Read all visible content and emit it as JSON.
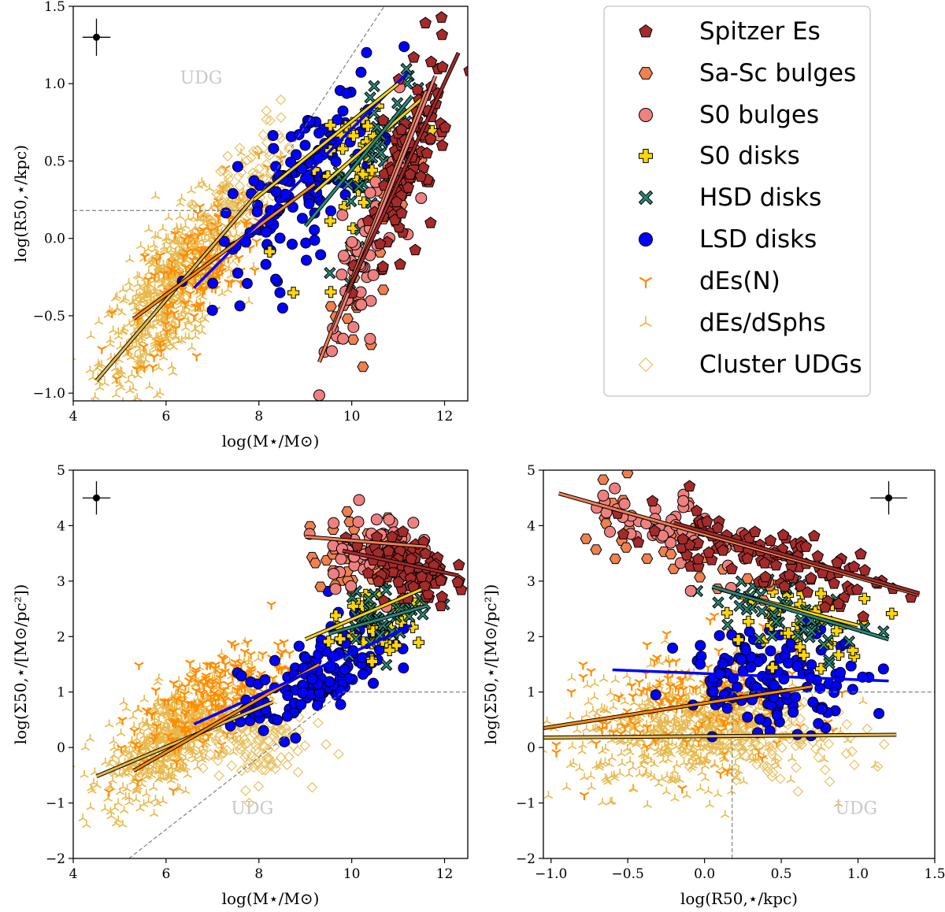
{
  "colors": {
    "spitzer": "#a52a2a",
    "sasc": "#f08050",
    "s0b": "#f08080",
    "s0d": "#ffd700",
    "hsd": "#2a8a7a",
    "lsd": "#0000ff",
    "den": "#ff8c00",
    "dsph": "#e8b84a",
    "udg": "#e8c060"
  },
  "legend": {
    "items": [
      {
        "key": "spitzer",
        "label": "Spitzer Es",
        "marker": "pentagon"
      },
      {
        "key": "sasc",
        "label": "Sa-Sc bulges",
        "marker": "hexagon"
      },
      {
        "key": "s0b",
        "label": "S0 bulges",
        "marker": "circle"
      },
      {
        "key": "s0d",
        "label": "S0 disks",
        "marker": "plus"
      },
      {
        "key": "hsd",
        "label": "HSD disks",
        "marker": "x"
      },
      {
        "key": "lsd",
        "label": "LSD disks",
        "marker": "circle"
      },
      {
        "key": "den",
        "label": "dEs(N)",
        "marker": "tri-down"
      },
      {
        "key": "dsph",
        "label": "dEs/dSphs",
        "marker": "tri-up"
      },
      {
        "key": "udg",
        "label": "Cluster UDGs",
        "marker": "diamond"
      }
    ]
  },
  "chart_data": [
    {
      "id": "p1",
      "type": "scatter",
      "xlabel": "log(M⋆/M⊙)",
      "ylabel": "log(R50,⋆/kpc)",
      "xlim": [
        4,
        12.5
      ],
      "ylim": [
        -1.05,
        1.5
      ],
      "xticks": [
        4,
        6,
        8,
        10,
        12
      ],
      "yticks": [
        -1.0,
        -0.5,
        0.0,
        0.5,
        1.0,
        1.5
      ],
      "ytick_labels": [
        "−1.0",
        "−0.5",
        "0.0",
        "0.5",
        "1.0",
        "1.5"
      ],
      "annotation": "UDG",
      "annotation_at": [
        6.3,
        1.0
      ],
      "error_bar": {
        "x": 4.5,
        "y": 1.3,
        "dx": 0.3,
        "dy": 0.12
      },
      "guides": [
        {
          "x1": 4,
          "y1": 0.18,
          "x2": 7.8,
          "y2": 0.18
        },
        {
          "x1": 7.8,
          "y1": 0.18,
          "x2": 10.7,
          "y2": 1.5
        }
      ],
      "series": [
        {
          "key": "dsph",
          "n": 620,
          "cx": 6.1,
          "cy": -0.35,
          "sx": 0.75,
          "sy": 0.22,
          "slope": 0.3
        },
        {
          "key": "den",
          "n": 180,
          "cx": 6.8,
          "cy": -0.15,
          "sx": 0.75,
          "sy": 0.2,
          "slope": 0.28
        },
        {
          "key": "udg",
          "n": 110,
          "cx": 7.7,
          "cy": 0.3,
          "sx": 0.55,
          "sy": 0.18,
          "slope": 0.3
        },
        {
          "key": "lsd",
          "n": 140,
          "cx": 8.9,
          "cy": 0.35,
          "sx": 0.85,
          "sy": 0.22,
          "slope": 0.28
        },
        {
          "key": "s0d",
          "n": 40,
          "cx": 10.3,
          "cy": 0.5,
          "sx": 0.55,
          "sy": 0.22,
          "slope": 0.3
        },
        {
          "key": "hsd",
          "n": 45,
          "cx": 10.6,
          "cy": 0.55,
          "sx": 0.5,
          "sy": 0.2,
          "slope": 0.4
        },
        {
          "key": "sasc",
          "n": 35,
          "cx": 10.3,
          "cy": -0.2,
          "sx": 0.6,
          "sy": 0.25,
          "slope": 0.6
        },
        {
          "key": "s0b",
          "n": 60,
          "cx": 10.4,
          "cy": -0.05,
          "sx": 0.55,
          "sy": 0.25,
          "slope": 0.6
        },
        {
          "key": "spitzer",
          "n": 110,
          "cx": 11.2,
          "cy": 0.45,
          "sx": 0.45,
          "sy": 0.25,
          "slope": 0.55
        }
      ],
      "fits": [
        {
          "key": "dsph",
          "x1": 4.5,
          "y1": -0.92,
          "x2": 8.0,
          "y2": 0.3
        },
        {
          "key": "den",
          "x1": 5.3,
          "y1": -0.52,
          "x2": 9.2,
          "y2": 0.35
        },
        {
          "key": "lsd",
          "x1": 6.6,
          "y1": -0.32,
          "x2": 11.2,
          "y2": 1.07
        },
        {
          "key": "s0d",
          "x1": 9.2,
          "y1": 0.3,
          "x2": 11.5,
          "y2": 0.9
        },
        {
          "key": "s0d",
          "x1": 7.9,
          "y1": 0.25,
          "x2": 11.0,
          "y2": 1.0
        },
        {
          "key": "hsd",
          "x1": 9.0,
          "y1": 0.08,
          "x2": 11.3,
          "y2": 0.92
        },
        {
          "key": "sasc",
          "x1": 9.3,
          "y1": -0.8,
          "x2": 11.6,
          "y2": 0.95
        },
        {
          "key": "s0b",
          "x1": 9.6,
          "y1": -0.6,
          "x2": 11.8,
          "y2": 1.05
        },
        {
          "key": "spitzer",
          "x1": 9.9,
          "y1": -0.35,
          "x2": 12.3,
          "y2": 1.2
        }
      ]
    },
    {
      "id": "p2",
      "type": "scatter",
      "xlabel": "log(M⋆/M⊙)",
      "ylabel": "log(Σ50,⋆/[M⊙/pc²])",
      "xlim": [
        4,
        12.5
      ],
      "ylim": [
        -2,
        5
      ],
      "xticks": [
        4,
        6,
        8,
        10,
        12
      ],
      "yticks": [
        -2,
        -1,
        0,
        1,
        2,
        3,
        4,
        5
      ],
      "ytick_labels": [
        "−2",
        "−1",
        "0",
        "1",
        "2",
        "3",
        "4",
        "5"
      ],
      "annotation": "UDG",
      "annotation_at": [
        7.4,
        -1.2
      ],
      "error_bar": {
        "x": 4.5,
        "y": 4.5,
        "dx": 0.3,
        "dy": 0.3
      },
      "guides": [
        {
          "x1": 9.8,
          "y1": 1.0,
          "x2": 12.5,
          "y2": 1.0
        },
        {
          "x1": 5.2,
          "y1": -2.0,
          "x2": 9.8,
          "y2": 1.0
        }
      ],
      "series": [
        {
          "key": "dsph",
          "n": 620,
          "cx": 6.2,
          "cy": 0.25,
          "sx": 0.75,
          "sy": 0.45,
          "slope": 0.5
        },
        {
          "key": "den",
          "n": 180,
          "cx": 7.0,
          "cy": 0.85,
          "sx": 0.8,
          "sy": 0.4,
          "slope": 0.5
        },
        {
          "key": "udg",
          "n": 110,
          "cx": 7.9,
          "cy": 0.05,
          "sx": 0.55,
          "sy": 0.35,
          "slope": 0.1
        },
        {
          "key": "lsd",
          "n": 140,
          "cx": 9.2,
          "cy": 1.25,
          "sx": 0.8,
          "sy": 0.4,
          "slope": 0.45
        },
        {
          "key": "s0d",
          "n": 40,
          "cx": 10.6,
          "cy": 2.3,
          "sx": 0.5,
          "sy": 0.35,
          "slope": 0.2
        },
        {
          "key": "hsd",
          "n": 45,
          "cx": 10.7,
          "cy": 2.4,
          "sx": 0.5,
          "sy": 0.3,
          "slope": 0.2
        },
        {
          "key": "sasc",
          "n": 35,
          "cx": 10.2,
          "cy": 3.5,
          "sx": 0.55,
          "sy": 0.35,
          "slope": 0.0
        },
        {
          "key": "s0b",
          "n": 60,
          "cx": 10.4,
          "cy": 3.6,
          "sx": 0.55,
          "sy": 0.35,
          "slope": 0.0
        },
        {
          "key": "spitzer",
          "n": 110,
          "cx": 11.2,
          "cy": 3.25,
          "sx": 0.45,
          "sy": 0.3,
          "slope": -0.2
        }
      ],
      "fits": [
        {
          "key": "dsph",
          "x1": 4.5,
          "y1": -0.52,
          "x2": 8.3,
          "y2": 0.82
        },
        {
          "key": "den",
          "x1": 5.3,
          "y1": -0.42,
          "x2": 9.3,
          "y2": 1.5
        },
        {
          "key": "lsd",
          "x1": 6.6,
          "y1": 0.42,
          "x2": 11.3,
          "y2": 2.2
        },
        {
          "key": "s0d",
          "x1": 9.0,
          "y1": 1.95,
          "x2": 11.5,
          "y2": 2.85
        },
        {
          "key": "hsd",
          "x1": 9.5,
          "y1": 2.05,
          "x2": 11.6,
          "y2": 2.55
        },
        {
          "key": "sasc",
          "x1": 9.0,
          "y1": 3.8,
          "x2": 11.6,
          "y2": 3.62
        },
        {
          "key": "spitzer",
          "x1": 9.8,
          "y1": 3.55,
          "x2": 12.3,
          "y2": 3.1
        }
      ]
    },
    {
      "id": "p3",
      "type": "scatter",
      "xlabel": "log(R50,⋆/kpc)",
      "ylabel": "log(Σ50,⋆/[M⊙/pc²])",
      "xlim": [
        -1.05,
        1.5
      ],
      "ylim": [
        -2,
        5
      ],
      "xticks": [
        -1.0,
        -0.5,
        0.0,
        0.5,
        1.0,
        1.5
      ],
      "xtick_labels": [
        "−1.0",
        "−0.5",
        "0.0",
        "0.5",
        "1.0",
        "1.5"
      ],
      "yticks": [
        -2,
        -1,
        0,
        1,
        2,
        3,
        4,
        5
      ],
      "ytick_labels": [
        "−2",
        "−1",
        "0",
        "1",
        "2",
        "3",
        "4",
        "5"
      ],
      "annotation": "UDG",
      "annotation_at": [
        0.85,
        -1.2
      ],
      "error_bar": {
        "x": 1.2,
        "y": 4.5,
        "dx": 0.12,
        "dy": 0.3
      },
      "guides": [
        {
          "x1": 0.18,
          "y1": 1.0,
          "x2": 1.5,
          "y2": 1.0
        },
        {
          "x1": 0.18,
          "y1": -2.0,
          "x2": 0.18,
          "y2": 1.0
        }
      ],
      "series": [
        {
          "key": "dsph",
          "n": 620,
          "cx": -0.1,
          "cy": 0.3,
          "sx": 0.38,
          "sy": 0.5,
          "slope": 0.2
        },
        {
          "key": "den",
          "n": 180,
          "cx": 0.0,
          "cy": 0.85,
          "sx": 0.35,
          "sy": 0.55,
          "slope": 0.3
        },
        {
          "key": "udg",
          "n": 110,
          "cx": 0.45,
          "cy": 0.1,
          "sx": 0.28,
          "sy": 0.35,
          "slope": -0.3
        },
        {
          "key": "lsd",
          "n": 140,
          "cx": 0.45,
          "cy": 1.25,
          "sx": 0.3,
          "sy": 0.45,
          "slope": 0.0
        },
        {
          "key": "s0d",
          "n": 40,
          "cx": 0.6,
          "cy": 2.3,
          "sx": 0.25,
          "sy": 0.35,
          "slope": -0.6
        },
        {
          "key": "hsd",
          "n": 45,
          "cx": 0.6,
          "cy": 2.4,
          "sx": 0.3,
          "sy": 0.3,
          "slope": -0.6
        },
        {
          "key": "sasc",
          "n": 35,
          "cx": -0.25,
          "cy": 3.8,
          "sx": 0.3,
          "sy": 0.4,
          "slope": -0.8
        },
        {
          "key": "s0b",
          "n": 60,
          "cx": -0.15,
          "cy": 3.9,
          "sx": 0.3,
          "sy": 0.35,
          "slope": -0.8
        },
        {
          "key": "spitzer",
          "n": 110,
          "cx": 0.4,
          "cy": 3.45,
          "sx": 0.4,
          "sy": 0.3,
          "slope": -0.7
        }
      ],
      "fits": [
        {
          "key": "sasc",
          "x1": -0.95,
          "y1": 4.58,
          "x2": 1.4,
          "y2": 2.75
        },
        {
          "key": "spitzer",
          "x1": -0.2,
          "y1": 4.05,
          "x2": 1.4,
          "y2": 2.78
        },
        {
          "key": "s0d",
          "x1": 0.1,
          "y1": 2.85,
          "x2": 1.0,
          "y2": 2.2
        },
        {
          "key": "hsd",
          "x1": 0.05,
          "y1": 2.9,
          "x2": 1.2,
          "y2": 1.95
        },
        {
          "key": "lsd",
          "x1": -0.6,
          "y1": 1.4,
          "x2": 1.2,
          "y2": 1.2
        },
        {
          "key": "den",
          "x1": -1.05,
          "y1": 0.35,
          "x2": 0.7,
          "y2": 1.1
        },
        {
          "key": "dsph",
          "x1": -1.05,
          "y1": 0.18,
          "x2": 1.25,
          "y2": 0.23
        }
      ]
    }
  ]
}
